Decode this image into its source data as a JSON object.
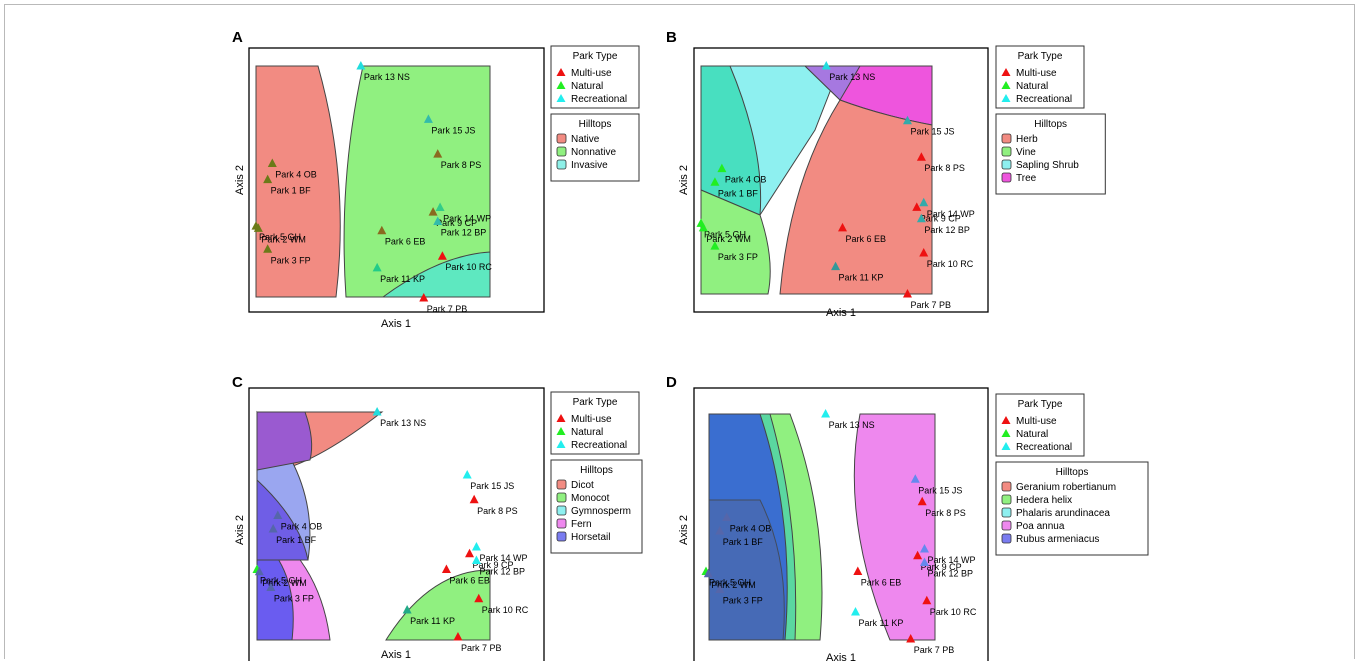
{
  "figure": {
    "panels": [
      {
        "letter": "A",
        "hilltops_title": "Hilltops",
        "hilltops_legend": [
          {
            "label": "Native",
            "color": "#f28b82"
          },
          {
            "label": "Nonnative",
            "color": "#90f080"
          },
          {
            "label": "Invasive",
            "color": "#8ef0e8"
          }
        ]
      },
      {
        "letter": "B",
        "hilltops_title": "Hilltops",
        "hilltops_legend": [
          {
            "label": "Herb",
            "color": "#f28b82"
          },
          {
            "label": "Vine",
            "color": "#90f080"
          },
          {
            "label": "Sapling Shrub",
            "color": "#8ef0f0"
          },
          {
            "label": "Tree",
            "color": "#ee55dd"
          }
        ]
      },
      {
        "letter": "C",
        "hilltops_title": "Hilltops",
        "hilltops_legend": [
          {
            "label": "Dicot",
            "color": "#f28b82"
          },
          {
            "label": "Monocot",
            "color": "#90f080"
          },
          {
            "label": "Gymnosperm",
            "color": "#8ef0f0"
          },
          {
            "label": "Fern",
            "color": "#ee88ee"
          },
          {
            "label": "Horsetail",
            "color": "#7a7cf0"
          }
        ]
      },
      {
        "letter": "D",
        "hilltops_title": "Hilltops",
        "hilltops_legend": [
          {
            "label": "Geranium robertianum",
            "color": "#f28b82"
          },
          {
            "label": "Hedera helix",
            "color": "#90f080"
          },
          {
            "label": "Phalaris arundinacea",
            "color": "#8ef0f0"
          },
          {
            "label": "Poa annua",
            "color": "#ee88ee"
          },
          {
            "label": "Rubus armeniacus",
            "color": "#7a7cf0"
          }
        ]
      }
    ],
    "park_type_title": "Park Type",
    "park_types": [
      {
        "label": "Multi-use",
        "color": "#ee1111"
      },
      {
        "label": "Natural",
        "color": "#22ee22"
      },
      {
        "label": "Recreational",
        "color": "#22eeee"
      }
    ],
    "xlabel": "Axis 1",
    "ylabel": "Axis 2"
  },
  "chart_data": [
    {
      "type": "scatter",
      "panel": "A",
      "xlabel": "Axis 1",
      "ylabel": "Axis 2",
      "points": [
        {
          "label": "Park 13 NS",
          "x": 0.45,
          "y": 1.0,
          "type": "Recreational",
          "color": "#22dddd"
        },
        {
          "label": "Park 15 JS",
          "x": 0.74,
          "y": 0.77,
          "type": "Recreational",
          "color": "#33bbaa"
        },
        {
          "label": "Park 8 PS",
          "x": 0.78,
          "y": 0.62,
          "type": "Multi-use",
          "color": "#8a6a20"
        },
        {
          "label": "Park 4 OB",
          "x": 0.07,
          "y": 0.58,
          "type": "Natural",
          "color": "#6b7a18"
        },
        {
          "label": "Park 1 BF",
          "x": 0.05,
          "y": 0.51,
          "type": "Natural",
          "color": "#6b7a18"
        },
        {
          "label": "Park 14 WP",
          "x": 0.79,
          "y": 0.39,
          "type": "Recreational",
          "color": "#33cc88"
        },
        {
          "label": "Park 9 CP",
          "x": 0.76,
          "y": 0.37,
          "type": "Multi-use",
          "color": "#8a6a20"
        },
        {
          "label": "Park 5 GH",
          "x": 0.0,
          "y": 0.31,
          "type": "Natural",
          "color": "#6b7a18"
        },
        {
          "label": "Park 6 EB",
          "x": 0.54,
          "y": 0.29,
          "type": "Multi-use",
          "color": "#8a6a20"
        },
        {
          "label": "Park 12 BP",
          "x": 0.78,
          "y": 0.33,
          "type": "Recreational",
          "color": "#33bbaa"
        },
        {
          "label": "Park 2 WM",
          "x": 0.01,
          "y": 0.3,
          "type": "Natural",
          "color": "#6b7a18"
        },
        {
          "label": "Park 3 FP",
          "x": 0.05,
          "y": 0.21,
          "type": "Natural",
          "color": "#6b7a18"
        },
        {
          "label": "Park 10 RC",
          "x": 0.8,
          "y": 0.18,
          "type": "Multi-use",
          "color": "#ee1111"
        },
        {
          "label": "Park 11 KP",
          "x": 0.52,
          "y": 0.13,
          "type": "Recreational",
          "color": "#22cc88"
        },
        {
          "label": "Park 7 PB",
          "x": 0.72,
          "y": 0.0,
          "type": "Multi-use",
          "color": "#ee1111"
        }
      ]
    },
    {
      "type": "scatter",
      "panel": "B",
      "xlabel": "Axis 1",
      "ylabel": "Axis 2",
      "points": [
        {
          "label": "Park 13 NS",
          "x": 0.54,
          "y": 1.0,
          "type": "Recreational",
          "color": "#22dddd"
        },
        {
          "label": "Park 15 JS",
          "x": 0.89,
          "y": 0.76,
          "type": "Recreational",
          "color": "#33aaaa"
        },
        {
          "label": "Park 8 PS",
          "x": 0.95,
          "y": 0.6,
          "type": "Multi-use",
          "color": "#ee1111"
        },
        {
          "label": "Park 4 OB",
          "x": 0.09,
          "y": 0.55,
          "type": "Natural",
          "color": "#22ee22"
        },
        {
          "label": "Park 1 BF",
          "x": 0.06,
          "y": 0.49,
          "type": "Natural",
          "color": "#22ee22"
        },
        {
          "label": "Park 14 WP",
          "x": 0.96,
          "y": 0.4,
          "type": "Recreational",
          "color": "#33aaaa"
        },
        {
          "label": "Park 9 CP",
          "x": 0.93,
          "y": 0.38,
          "type": "Multi-use",
          "color": "#ee1111"
        },
        {
          "label": "Park 5 GH",
          "x": 0.0,
          "y": 0.31,
          "type": "Natural",
          "color": "#22ee22"
        },
        {
          "label": "Park 6 EB",
          "x": 0.61,
          "y": 0.29,
          "type": "Multi-use",
          "color": "#ee1111"
        },
        {
          "label": "Park 12 BP",
          "x": 0.95,
          "y": 0.33,
          "type": "Recreational",
          "color": "#33aaaa"
        },
        {
          "label": "Park 2 WM",
          "x": 0.01,
          "y": 0.29,
          "type": "Natural",
          "color": "#22ee22"
        },
        {
          "label": "Park 3 FP",
          "x": 0.06,
          "y": 0.21,
          "type": "Natural",
          "color": "#22ee22"
        },
        {
          "label": "Park 10 RC",
          "x": 0.96,
          "y": 0.18,
          "type": "Multi-use",
          "color": "#ee1111"
        },
        {
          "label": "Park 11 KP",
          "x": 0.58,
          "y": 0.12,
          "type": "Recreational",
          "color": "#339999"
        },
        {
          "label": "Park 7 PB",
          "x": 0.89,
          "y": 0.0,
          "type": "Multi-use",
          "color": "#ee1111"
        }
      ]
    },
    {
      "type": "scatter",
      "panel": "C",
      "xlabel": "Axis 1",
      "ylabel": "Axis 2",
      "points": [
        {
          "label": "Park 13 NS",
          "x": 0.52,
          "y": 1.0,
          "type": "Recreational",
          "color": "#22dddd"
        },
        {
          "label": "Park 15 JS",
          "x": 0.91,
          "y": 0.72,
          "type": "Recreational",
          "color": "#22eeee"
        },
        {
          "label": "Park 8 PS",
          "x": 0.94,
          "y": 0.61,
          "type": "Multi-use",
          "color": "#ee1111"
        },
        {
          "label": "Park 4 OB",
          "x": 0.09,
          "y": 0.54,
          "type": "Natural",
          "color": "#5566aa"
        },
        {
          "label": "Park 1 BF",
          "x": 0.07,
          "y": 0.48,
          "type": "Natural",
          "color": "#5566aa"
        },
        {
          "label": "Park 14 WP",
          "x": 0.95,
          "y": 0.4,
          "type": "Recreational",
          "color": "#22eeee"
        },
        {
          "label": "Park 9 CP",
          "x": 0.92,
          "y": 0.37,
          "type": "Multi-use",
          "color": "#ee1111"
        },
        {
          "label": "Park 5 GH",
          "x": 0.0,
          "y": 0.3,
          "type": "Natural",
          "color": "#22ee22"
        },
        {
          "label": "Park 6 EB",
          "x": 0.82,
          "y": 0.3,
          "type": "Multi-use",
          "color": "#ee1111"
        },
        {
          "label": "Park 12 BP",
          "x": 0.95,
          "y": 0.34,
          "type": "Recreational",
          "color": "#22eeee"
        },
        {
          "label": "Park 2 WM",
          "x": 0.01,
          "y": 0.29,
          "type": "Natural",
          "color": "#5566aa"
        },
        {
          "label": "Park 3 FP",
          "x": 0.06,
          "y": 0.22,
          "type": "Natural",
          "color": "#5566aa"
        },
        {
          "label": "Park 10 RC",
          "x": 0.96,
          "y": 0.17,
          "type": "Multi-use",
          "color": "#ee1111"
        },
        {
          "label": "Park 11 KP",
          "x": 0.65,
          "y": 0.12,
          "type": "Recreational",
          "color": "#22aa88"
        },
        {
          "label": "Park 7 PB",
          "x": 0.87,
          "y": 0.0,
          "type": "Multi-use",
          "color": "#ee1111"
        }
      ]
    },
    {
      "type": "scatter",
      "panel": "D",
      "xlabel": "Axis 1",
      "ylabel": "Axis 2",
      "points": [
        {
          "label": "Park 13 NS",
          "x": 0.52,
          "y": 1.0,
          "type": "Recreational",
          "color": "#22eeee"
        },
        {
          "label": "Park 15 JS",
          "x": 0.91,
          "y": 0.71,
          "type": "Recreational",
          "color": "#6688ee"
        },
        {
          "label": "Park 8 PS",
          "x": 0.94,
          "y": 0.61,
          "type": "Multi-use",
          "color": "#ee1111"
        },
        {
          "label": "Park 4 OB",
          "x": 0.09,
          "y": 0.54,
          "type": "Natural",
          "color": "#5566aa"
        },
        {
          "label": "Park 1 BF",
          "x": 0.06,
          "y": 0.48,
          "type": "Natural",
          "color": "#5566aa"
        },
        {
          "label": "Park 14 WP",
          "x": 0.95,
          "y": 0.4,
          "type": "Recreational",
          "color": "#6688ee"
        },
        {
          "label": "Park 9 CP",
          "x": 0.92,
          "y": 0.37,
          "type": "Multi-use",
          "color": "#ee1111"
        },
        {
          "label": "Park 5 GH",
          "x": 0.0,
          "y": 0.3,
          "type": "Natural",
          "color": "#22ee22"
        },
        {
          "label": "Park 6 EB",
          "x": 0.66,
          "y": 0.3,
          "type": "Multi-use",
          "color": "#ee1111"
        },
        {
          "label": "Park 12 BP",
          "x": 0.95,
          "y": 0.34,
          "type": "Recreational",
          "color": "#6688ee"
        },
        {
          "label": "Park 2 WM",
          "x": 0.01,
          "y": 0.29,
          "type": "Natural",
          "color": "#5566aa"
        },
        {
          "label": "Park 3 FP",
          "x": 0.06,
          "y": 0.22,
          "type": "Natural",
          "color": "#5566aa"
        },
        {
          "label": "Park 10 RC",
          "x": 0.96,
          "y": 0.17,
          "type": "Multi-use",
          "color": "#ee1111"
        },
        {
          "label": "Park 11 KP",
          "x": 0.65,
          "y": 0.12,
          "type": "Recreational",
          "color": "#22eeee"
        },
        {
          "label": "Park 7 PB",
          "x": 0.89,
          "y": 0.0,
          "type": "Multi-use",
          "color": "#ee1111"
        }
      ]
    }
  ]
}
